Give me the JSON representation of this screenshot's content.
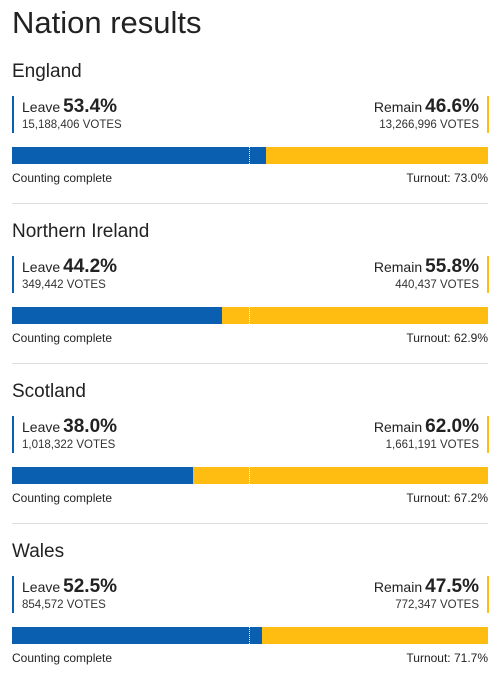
{
  "page": {
    "title": "Nation results"
  },
  "colors": {
    "leave": "#0b5fb0",
    "remain": "#ffbd11",
    "divider": "#dddddd"
  },
  "nations": [
    {
      "name": "England",
      "leave": {
        "label": "Leave",
        "percent": "53.4%",
        "share": 53.4,
        "votes": "15,188,406 VOTES"
      },
      "remain": {
        "label": "Remain",
        "percent": "46.6%",
        "votes": "13,266,996 VOTES"
      },
      "status": "Counting complete",
      "turnout": "Turnout: 73.0%"
    },
    {
      "name": "Northern Ireland",
      "leave": {
        "label": "Leave",
        "percent": "44.2%",
        "share": 44.2,
        "votes": "349,442 VOTES"
      },
      "remain": {
        "label": "Remain",
        "percent": "55.8%",
        "votes": "440,437 VOTES"
      },
      "status": "Counting complete",
      "turnout": "Turnout: 62.9%"
    },
    {
      "name": "Scotland",
      "leave": {
        "label": "Leave",
        "percent": "38.0%",
        "share": 38.0,
        "votes": "1,018,322 VOTES"
      },
      "remain": {
        "label": "Remain",
        "percent": "62.0%",
        "votes": "1,661,191 VOTES"
      },
      "status": "Counting complete",
      "turnout": "Turnout: 67.2%"
    },
    {
      "name": "Wales",
      "leave": {
        "label": "Leave",
        "percent": "52.5%",
        "share": 52.5,
        "votes": "854,572 VOTES"
      },
      "remain": {
        "label": "Remain",
        "percent": "47.5%",
        "votes": "772,347 VOTES"
      },
      "status": "Counting complete",
      "turnout": "Turnout: 71.7%"
    }
  ]
}
